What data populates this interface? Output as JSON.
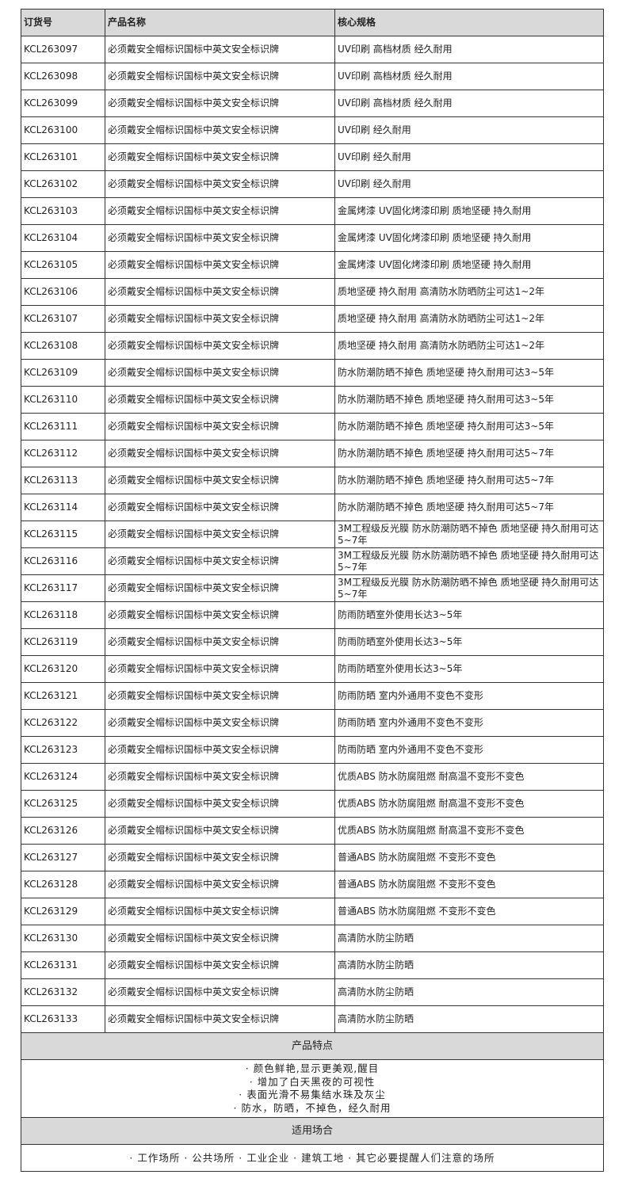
{
  "headers": [
    "订货号",
    "产品名称",
    "核心规格"
  ],
  "rows": [
    {
      "code": "KCL263097",
      "name": "必须戴安全帽标识国标中英文安全标识牌",
      "spec": "UV印刷 高档材质 经久耐用"
    },
    {
      "code": "KCL263098",
      "name": "必须戴安全帽标识国标中英文安全标识牌",
      "spec": "UV印刷 高档材质 经久耐用"
    },
    {
      "code": "KCL263099",
      "name": "必须戴安全帽标识国标中英文安全标识牌",
      "spec": "UV印刷 高档材质 经久耐用"
    },
    {
      "code": "KCL263100",
      "name": "必须戴安全帽标识国标中英文安全标识牌",
      "spec": "UV印刷 经久耐用"
    },
    {
      "code": "KCL263101",
      "name": "必须戴安全帽标识国标中英文安全标识牌",
      "spec": "UV印刷 经久耐用"
    },
    {
      "code": "KCL263102",
      "name": "必须戴安全帽标识国标中英文安全标识牌",
      "spec": "UV印刷 经久耐用"
    },
    {
      "code": "KCL263103",
      "name": "必须戴安全帽标识国标中英文安全标识牌",
      "spec": "金属烤漆 UV固化烤漆印刷 质地坚硬 持久耐用"
    },
    {
      "code": "KCL263104",
      "name": "必须戴安全帽标识国标中英文安全标识牌",
      "spec": "金属烤漆 UV固化烤漆印刷 质地坚硬 持久耐用"
    },
    {
      "code": "KCL263105",
      "name": "必须戴安全帽标识国标中英文安全标识牌",
      "spec": "金属烤漆 UV固化烤漆印刷 质地坚硬 持久耐用"
    },
    {
      "code": "KCL263106",
      "name": "必须戴安全帽标识国标中英文安全标识牌",
      "spec": "质地坚硬 持久耐用 高清防水防晒防尘可达1~2年"
    },
    {
      "code": "KCL263107",
      "name": "必须戴安全帽标识国标中英文安全标识牌",
      "spec": "质地坚硬 持久耐用 高清防水防晒防尘可达1~2年"
    },
    {
      "code": "KCL263108",
      "name": "必须戴安全帽标识国标中英文安全标识牌",
      "spec": "质地坚硬 持久耐用 高清防水防晒防尘可达1~2年"
    },
    {
      "code": "KCL263109",
      "name": "必须戴安全帽标识国标中英文安全标识牌",
      "spec": "防水防潮防晒不掉色 质地坚硬 持久耐用可达3~5年"
    },
    {
      "code": "KCL263110",
      "name": "必须戴安全帽标识国标中英文安全标识牌",
      "spec": "防水防潮防晒不掉色 质地坚硬 持久耐用可达3~5年"
    },
    {
      "code": "KCL263111",
      "name": "必须戴安全帽标识国标中英文安全标识牌",
      "spec": "防水防潮防晒不掉色 质地坚硬 持久耐用可达3~5年"
    },
    {
      "code": "KCL263112",
      "name": "必须戴安全帽标识国标中英文安全标识牌",
      "spec": "防水防潮防晒不掉色 质地坚硬 持久耐用可达5~7年"
    },
    {
      "code": "KCL263113",
      "name": "必须戴安全帽标识国标中英文安全标识牌",
      "spec": "防水防潮防晒不掉色 质地坚硬 持久耐用可达5~7年"
    },
    {
      "code": "KCL263114",
      "name": "必须戴安全帽标识国标中英文安全标识牌",
      "spec": "防水防潮防晒不掉色 质地坚硬 持久耐用可达5~7年"
    },
    {
      "code": "KCL263115",
      "name": "必须戴安全帽标识国标中英文安全标识牌",
      "spec": "3M工程级反光膜 防水防潮防晒不掉色 质地坚硬 持久耐用可达5~7年"
    },
    {
      "code": "KCL263116",
      "name": "必须戴安全帽标识国标中英文安全标识牌",
      "spec": "3M工程级反光膜 防水防潮防晒不掉色 质地坚硬 持久耐用可达5~7年"
    },
    {
      "code": "KCL263117",
      "name": "必须戴安全帽标识国标中英文安全标识牌",
      "spec": "3M工程级反光膜 防水防潮防晒不掉色 质地坚硬 持久耐用可达5~7年"
    },
    {
      "code": "KCL263118",
      "name": "必须戴安全帽标识国标中英文安全标识牌",
      "spec": "防雨防晒室外使用长达3~5年"
    },
    {
      "code": "KCL263119",
      "name": "必须戴安全帽标识国标中英文安全标识牌",
      "spec": "防雨防晒室外使用长达3~5年"
    },
    {
      "code": "KCL263120",
      "name": "必须戴安全帽标识国标中英文安全标识牌",
      "spec": "防雨防晒室外使用长达3~5年"
    },
    {
      "code": "KCL263121",
      "name": "必须戴安全帽标识国标中英文安全标识牌",
      "spec": "防雨防晒 室内外通用不变色不变形"
    },
    {
      "code": "KCL263122",
      "name": "必须戴安全帽标识国标中英文安全标识牌",
      "spec": "防雨防晒 室内外通用不变色不变形"
    },
    {
      "code": "KCL263123",
      "name": "必须戴安全帽标识国标中英文安全标识牌",
      "spec": "防雨防晒 室内外通用不变色不变形"
    },
    {
      "code": "KCL263124",
      "name": "必须戴安全帽标识国标中英文安全标识牌",
      "spec": "优质ABS 防水防腐阻燃 耐高温不变形不变色"
    },
    {
      "code": "KCL263125",
      "name": "必须戴安全帽标识国标中英文安全标识牌",
      "spec": "优质ABS 防水防腐阻燃 耐高温不变形不变色"
    },
    {
      "code": "KCL263126",
      "name": "必须戴安全帽标识国标中英文安全标识牌",
      "spec": "优质ABS 防水防腐阻燃 耐高温不变形不变色"
    },
    {
      "code": "KCL263127",
      "name": "必须戴安全帽标识国标中英文安全标识牌",
      "spec": "普通ABS 防水防腐阻燃 不变形不变色"
    },
    {
      "code": "KCL263128",
      "name": "必须戴安全帽标识国标中英文安全标识牌",
      "spec": "普通ABS 防水防腐阻燃 不变形不变色"
    },
    {
      "code": "KCL263129",
      "name": "必须戴安全帽标识国标中英文安全标识牌",
      "spec": "普通ABS 防水防腐阻燃 不变形不变色"
    },
    {
      "code": "KCL263130",
      "name": "必须戴安全帽标识国标中英文安全标识牌",
      "spec": "高清防水防尘防晒"
    },
    {
      "code": "KCL263131",
      "name": "必须戴安全帽标识国标中英文安全标识牌",
      "spec": "高清防水防尘防晒"
    },
    {
      "code": "KCL263132",
      "name": "必须戴安全帽标识国标中英文安全标识牌",
      "spec": "高清防水防尘防晒"
    },
    {
      "code": "KCL263133",
      "name": "必须戴安全帽标识国标中英文安全标识牌",
      "spec": "高清防水防尘防晒"
    }
  ],
  "features": {
    "title": "产品特点",
    "items": [
      "· 颜色鲜艳,显示更美观,醒目",
      "· 增加了白天黑夜的可视性",
      "· 表面光滑不易集结水珠及灰尘",
      "· 防水，防晒，不掉色，经久耐用"
    ]
  },
  "usage": {
    "title": "适用场合",
    "text": "· 工作场所 · 公共场所 · 工业企业 · 建筑工地 · 其它必要提醒人们注意的场所"
  },
  "colors": {
    "header_bg": "#d9d9d9",
    "border": "#333333"
  }
}
